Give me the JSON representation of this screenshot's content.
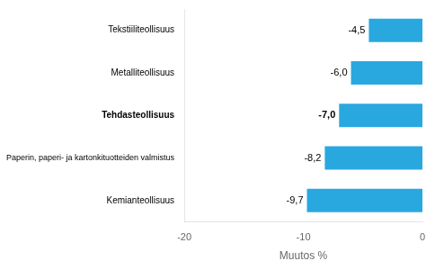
{
  "chart_data": {
    "type": "bar",
    "orientation": "horizontal",
    "categories": [
      "Kemianteollisuus",
      "Paperin, paperi- ja kartonkituotteiden valmistus",
      "Tehdasteollisuus",
      "Metalliteollisuus",
      "Tekstiiliteollisuus"
    ],
    "values": [
      -9.7,
      -8.2,
      -7.0,
      -6.0,
      -4.5
    ],
    "value_labels": [
      "-9,7",
      "-8,2",
      "-7,0",
      "-6,0",
      "-4,5"
    ],
    "data_labels": true,
    "color": "#29a8e0",
    "xlabel": "Muutos %",
    "xlim": [
      -20,
      0
    ],
    "xticks": [
      -20,
      -10,
      0
    ],
    "grid": false
  }
}
